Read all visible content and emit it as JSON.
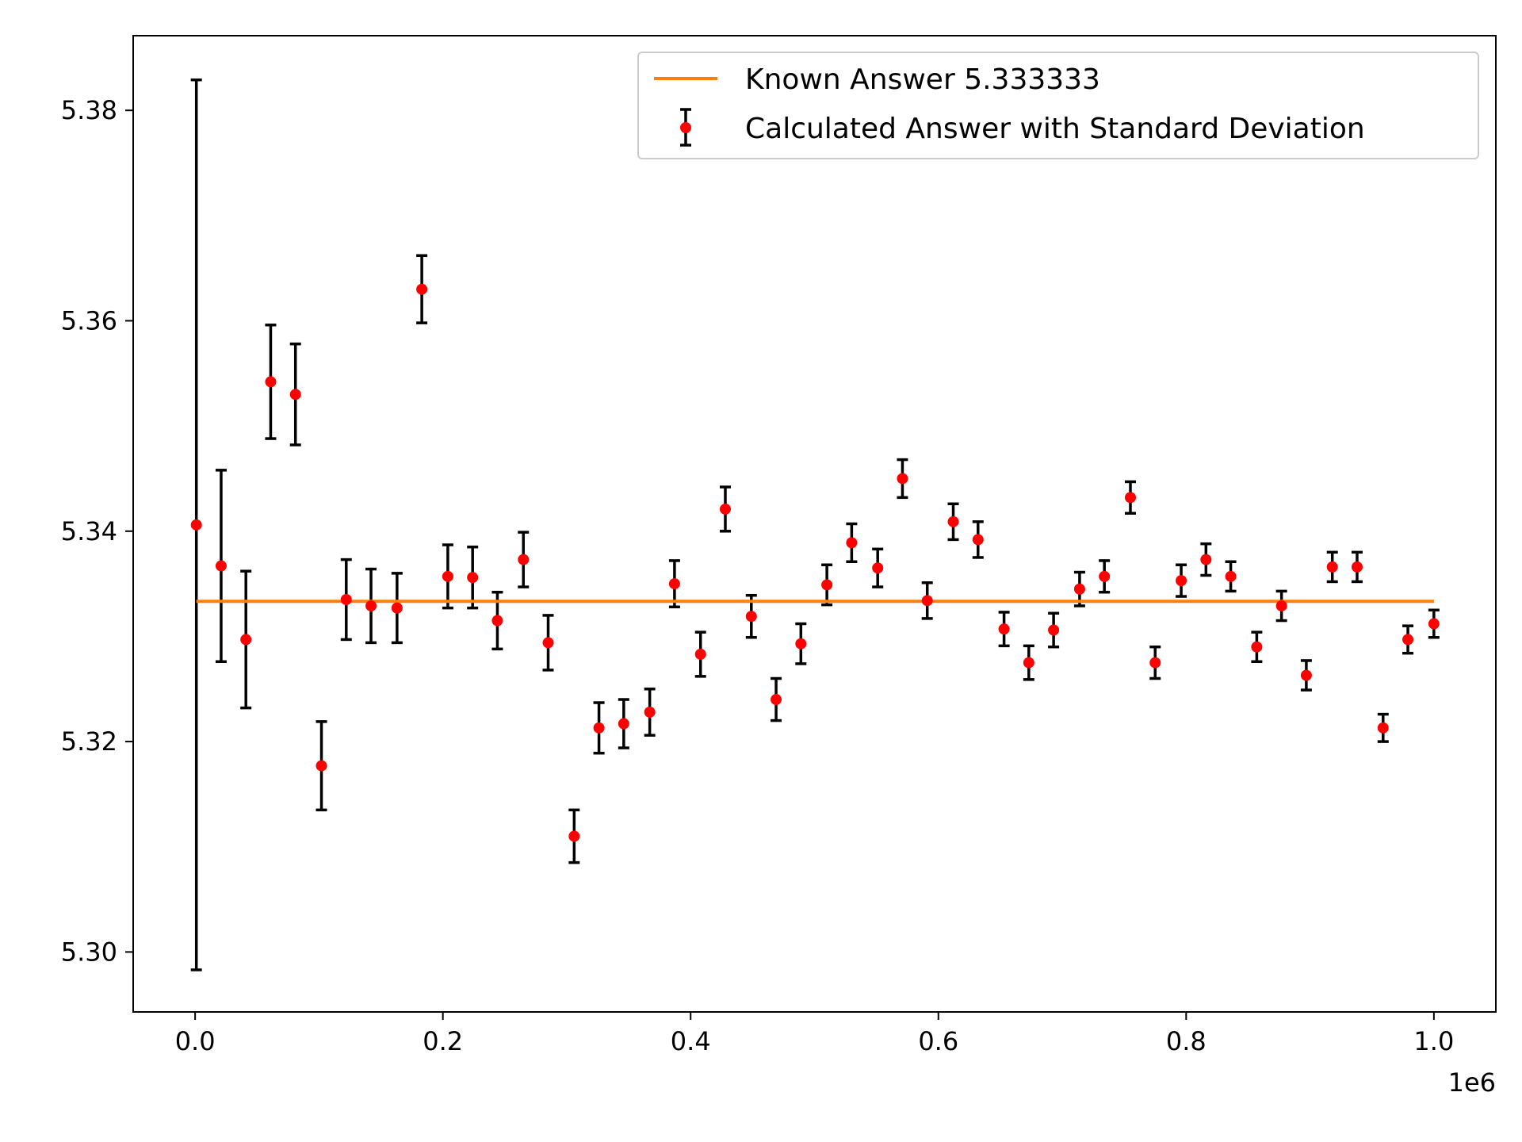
{
  "chart_data": {
    "type": "scatter",
    "title": "",
    "xlabel": "",
    "ylabel": "",
    "x_offset_label": "1e6",
    "xlim": [
      -50000,
      1050000
    ],
    "ylim": [
      5.2943,
      5.3871
    ],
    "x_ticks": [
      0,
      200000,
      400000,
      600000,
      800000,
      1000000
    ],
    "x_tick_labels": [
      "0.0",
      "0.2",
      "0.4",
      "0.6",
      "0.8",
      "1.0"
    ],
    "y_ticks": [
      5.3,
      5.32,
      5.34,
      5.36,
      5.38
    ],
    "y_tick_labels": [
      "5.30",
      "5.32",
      "5.34",
      "5.36",
      "5.38"
    ],
    "grid": false,
    "legend_position": "top-right",
    "series": [
      {
        "name": "Known Answer 5.333333",
        "kind": "line",
        "color": "#ff7f0e",
        "x": [
          1000,
          1000000
        ],
        "y": [
          5.333333,
          5.333333
        ]
      },
      {
        "name": "Calculated Answer with Standard Deviation",
        "kind": "errorbar",
        "color": "#ff0000",
        "error_color": "#000000",
        "x": [
          1000,
          21000,
          41000,
          61000,
          81000,
          102000,
          122000,
          142000,
          163000,
          183000,
          204000,
          224000,
          244000,
          265000,
          285000,
          306000,
          326000,
          346000,
          367000,
          387000,
          408000,
          428000,
          449000,
          469000,
          489000,
          510000,
          530000,
          551000,
          571000,
          591000,
          612000,
          632000,
          653000,
          673000,
          693000,
          714000,
          734000,
          755000,
          775000,
          796000,
          816000,
          836000,
          857000,
          877000,
          897000,
          918000,
          938000,
          959000,
          979000,
          1000000
        ],
        "y": [
          5.3406,
          5.3367,
          5.3297,
          5.3542,
          5.353,
          5.3177,
          5.3335,
          5.3329,
          5.3327,
          5.363,
          5.3357,
          5.3356,
          5.3315,
          5.3373,
          5.3294,
          5.311,
          5.3213,
          5.3217,
          5.3228,
          5.335,
          5.3283,
          5.3421,
          5.3319,
          5.324,
          5.3293,
          5.3349,
          5.3389,
          5.3365,
          5.345,
          5.3334,
          5.3409,
          5.3392,
          5.3307,
          5.3275,
          5.3306,
          5.3345,
          5.3357,
          5.3432,
          5.3275,
          5.3353,
          5.3373,
          5.3357,
          5.329,
          5.3329,
          5.3263,
          5.3366,
          5.3366,
          5.3213,
          5.3297,
          5.3312
        ],
        "yerr": [
          0.0423,
          0.0091,
          0.0065,
          0.0054,
          0.0048,
          0.0042,
          0.0038,
          0.0035,
          0.0033,
          0.0032,
          0.003,
          0.0029,
          0.0027,
          0.0026,
          0.0026,
          0.0025,
          0.0024,
          0.0023,
          0.0022,
          0.0022,
          0.0021,
          0.0021,
          0.002,
          0.002,
          0.0019,
          0.0019,
          0.0018,
          0.0018,
          0.0018,
          0.0017,
          0.0017,
          0.0017,
          0.0016,
          0.0016,
          0.0016,
          0.0016,
          0.0015,
          0.0015,
          0.0015,
          0.0015,
          0.0015,
          0.0014,
          0.0014,
          0.0014,
          0.0014,
          0.0014,
          0.0014,
          0.0013,
          0.0013,
          0.0013
        ]
      }
    ]
  }
}
